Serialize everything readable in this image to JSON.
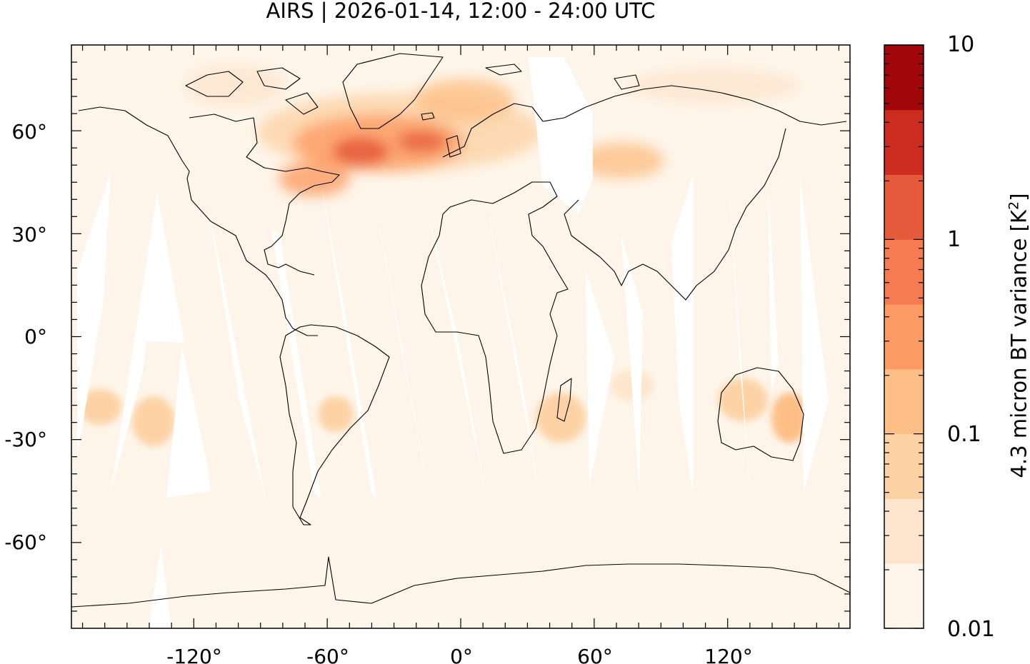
{
  "title": "AIRS | 2026-01-14, 12:00 - 24:00 UTC",
  "colorbar": {
    "label": "4.3 micron BT variance [K",
    "label_sup": "2",
    "label_end": "]",
    "scale": "log",
    "range": [
      0.01,
      10
    ],
    "tick_labels": [
      "10",
      "1",
      "0.1",
      "0.01"
    ],
    "colors": [
      "#fef5ea",
      "#fde6cd",
      "#fdd3a6",
      "#fdbf86",
      "#fc9c64",
      "#f57b50",
      "#e65a3c",
      "#cc2b1f",
      "#a10608"
    ]
  },
  "map": {
    "projection": "equirectangular",
    "lon_range": [
      -175,
      175
    ],
    "lat_range": [
      -85,
      85
    ],
    "x_tick_labels": [
      "-120°",
      "-60°",
      "0°",
      "60°",
      "120°"
    ],
    "y_tick_labels": [
      "60°",
      "30°",
      "0°",
      "-30°",
      "-60°"
    ],
    "background_color": "#fef5ea",
    "gap_color": "#ffffff"
  }
}
